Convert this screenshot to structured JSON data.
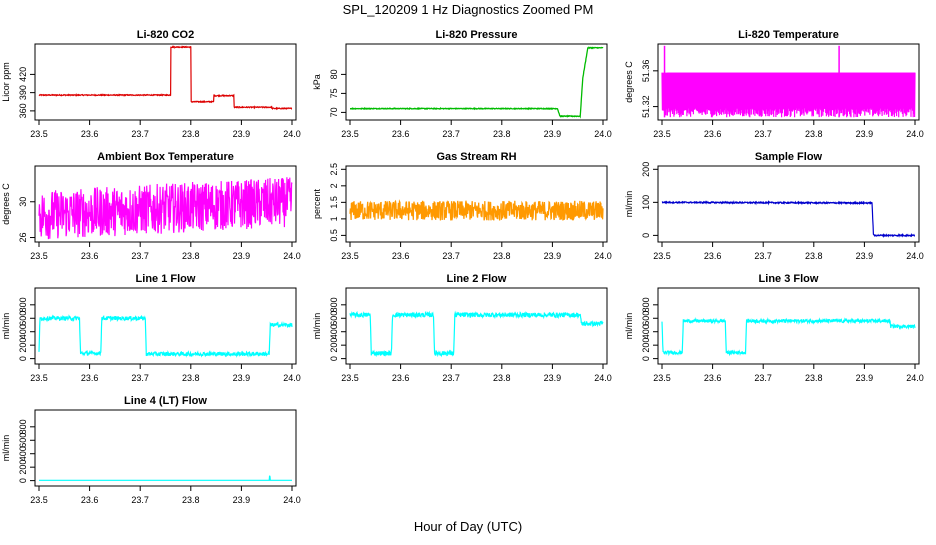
{
  "title": "SPL_120209  1 Hz Diagnostics Zoomed PM",
  "footer": "Hour of Day (UTC)",
  "chart_data": [
    {
      "type": "line",
      "title": "Li-820 CO2",
      "ylabel": "Licor ppm",
      "color": "#dd0000",
      "xlim": [
        23.5,
        24.0
      ],
      "ylim": [
        345,
        470
      ],
      "yticks": [
        360,
        390,
        420
      ],
      "xticks": [
        23.5,
        23.6,
        23.7,
        23.8,
        23.9,
        24.0
      ],
      "noise": 0.8,
      "dots": false,
      "x": [
        23.5,
        23.76,
        23.76,
        23.8,
        23.8,
        23.845,
        23.845,
        23.885,
        23.885,
        23.96,
        23.96,
        24.0
      ],
      "y": [
        386,
        386,
        465,
        465,
        375,
        375,
        385,
        385,
        366,
        366,
        364,
        364
      ]
    },
    {
      "type": "line",
      "title": "Li-820 Pressure",
      "ylabel": "kPa",
      "color": "#00bb00",
      "xlim": [
        23.5,
        24.0
      ],
      "ylim": [
        68,
        88
      ],
      "yticks": [
        70,
        75,
        80
      ],
      "xticks": [
        23.5,
        23.6,
        23.7,
        23.8,
        23.9,
        24.0
      ],
      "noise": 0.1,
      "dots": true,
      "x": [
        23.5,
        23.91,
        23.915,
        23.955,
        23.96,
        23.97,
        24.0
      ],
      "y": [
        71,
        71,
        69,
        69,
        79,
        87,
        87
      ]
    },
    {
      "type": "line",
      "title": "Li-820 Temperature",
      "ylabel": "degrees C",
      "color": "#ff00ff",
      "xlim": [
        23.5,
        24.0
      ],
      "ylim": [
        51.305,
        51.39
      ],
      "yticks": [
        51.32,
        51.36
      ],
      "xticks": [
        23.5,
        23.6,
        23.7,
        23.8,
        23.9,
        24.0
      ],
      "noise": 0.0,
      "dots": false,
      "band": [
        51.308,
        51.358
      ],
      "x": [
        23.5,
        24.0
      ],
      "y": [
        51.358,
        51.358
      ]
    },
    {
      "type": "line",
      "title": "Ambient Box Temperature",
      "ylabel": "degrees C",
      "color": "#ff00ff",
      "xlim": [
        23.5,
        24.0
      ],
      "ylim": [
        25.5,
        34
      ],
      "yticks": [
        26,
        30
      ],
      "xticks": [
        23.5,
        23.6,
        23.7,
        23.8,
        23.9,
        24.0
      ],
      "noise": 2.8,
      "dots": false,
      "x": [
        23.5,
        24.0
      ],
      "y": [
        28.5,
        30
      ]
    },
    {
      "type": "line",
      "title": "Gas Stream RH",
      "ylabel": "percent",
      "color": "#ff9900",
      "xlim": [
        23.5,
        24.0
      ],
      "ylim": [
        0.3,
        2.6
      ],
      "yticks": [
        0.5,
        1.0,
        1.5,
        2.0,
        2.5
      ],
      "xticks": [
        23.5,
        23.6,
        23.7,
        23.8,
        23.9,
        24.0
      ],
      "noise": 0.3,
      "dots": true,
      "x": [
        23.5,
        24.0
      ],
      "y": [
        1.25,
        1.25
      ]
    },
    {
      "type": "line",
      "title": "Sample Flow",
      "ylabel": "ml/min",
      "color": "#0000cc",
      "xlim": [
        23.5,
        24.0
      ],
      "ylim": [
        -20,
        210
      ],
      "yticks": [
        0,
        100,
        200
      ],
      "xticks": [
        23.5,
        23.6,
        23.7,
        23.8,
        23.9,
        24.0
      ],
      "noise": 2.0,
      "dots": false,
      "x": [
        23.5,
        23.915,
        23.918,
        24.0
      ],
      "y": [
        100,
        98,
        0,
        0
      ]
    },
    {
      "type": "line",
      "title": "Line 1 Flow",
      "ylabel": "ml/min",
      "color": "#00ffff",
      "xlim": [
        23.5,
        24.0
      ],
      "ylim": [
        -80,
        1050
      ],
      "yticks": [
        0,
        200,
        400,
        600,
        800
      ],
      "xticks": [
        23.5,
        23.6,
        23.7,
        23.8,
        23.9,
        24.0
      ],
      "noise": 30,
      "dots": false,
      "x": [
        23.5,
        23.502,
        23.58,
        23.582,
        23.622,
        23.624,
        23.71,
        23.712,
        23.955,
        23.957,
        24.0
      ],
      "y": [
        100,
        600,
        600,
        80,
        80,
        600,
        600,
        70,
        70,
        500,
        500
      ]
    },
    {
      "type": "line",
      "title": "Line 2 Flow",
      "ylabel": "ml/min",
      "color": "#00ffff",
      "xlim": [
        23.5,
        24.0
      ],
      "ylim": [
        -80,
        1050
      ],
      "yticks": [
        0,
        200,
        400,
        600,
        800
      ],
      "xticks": [
        23.5,
        23.6,
        23.7,
        23.8,
        23.9,
        24.0
      ],
      "noise": 35,
      "dots": false,
      "x": [
        23.5,
        23.54,
        23.542,
        23.582,
        23.584,
        23.665,
        23.667,
        23.705,
        23.707,
        23.955,
        23.957,
        24.0
      ],
      "y": [
        650,
        650,
        80,
        80,
        650,
        650,
        80,
        80,
        650,
        650,
        520,
        520
      ]
    },
    {
      "type": "line",
      "title": "Line 3 Flow",
      "ylabel": "ml/min",
      "color": "#00ffff",
      "xlim": [
        23.5,
        24.0
      ],
      "ylim": [
        -80,
        1050
      ],
      "yticks": [
        0,
        200,
        400,
        600,
        800
      ],
      "xticks": [
        23.5,
        23.6,
        23.7,
        23.8,
        23.9,
        24.0
      ],
      "noise": 25,
      "dots": false,
      "x": [
        23.5,
        23.502,
        23.54,
        23.542,
        23.625,
        23.627,
        23.665,
        23.667,
        23.95,
        23.952,
        24.0
      ],
      "y": [
        550,
        90,
        90,
        560,
        560,
        90,
        90,
        560,
        560,
        480,
        480
      ]
    },
    {
      "type": "line",
      "title": "Line 4 (LT) Flow",
      "ylabel": "ml/min",
      "color": "#00ffff",
      "xlim": [
        23.5,
        24.0
      ],
      "ylim": [
        -80,
        1050
      ],
      "yticks": [
        0,
        200,
        400,
        600,
        800
      ],
      "xticks": [
        23.5,
        23.6,
        23.7,
        23.8,
        23.9,
        24.0
      ],
      "noise": 0,
      "dots": false,
      "x": [
        23.5,
        23.955,
        23.956,
        23.957,
        24.0
      ],
      "y": [
        5,
        5,
        100,
        5,
        5
      ]
    }
  ]
}
